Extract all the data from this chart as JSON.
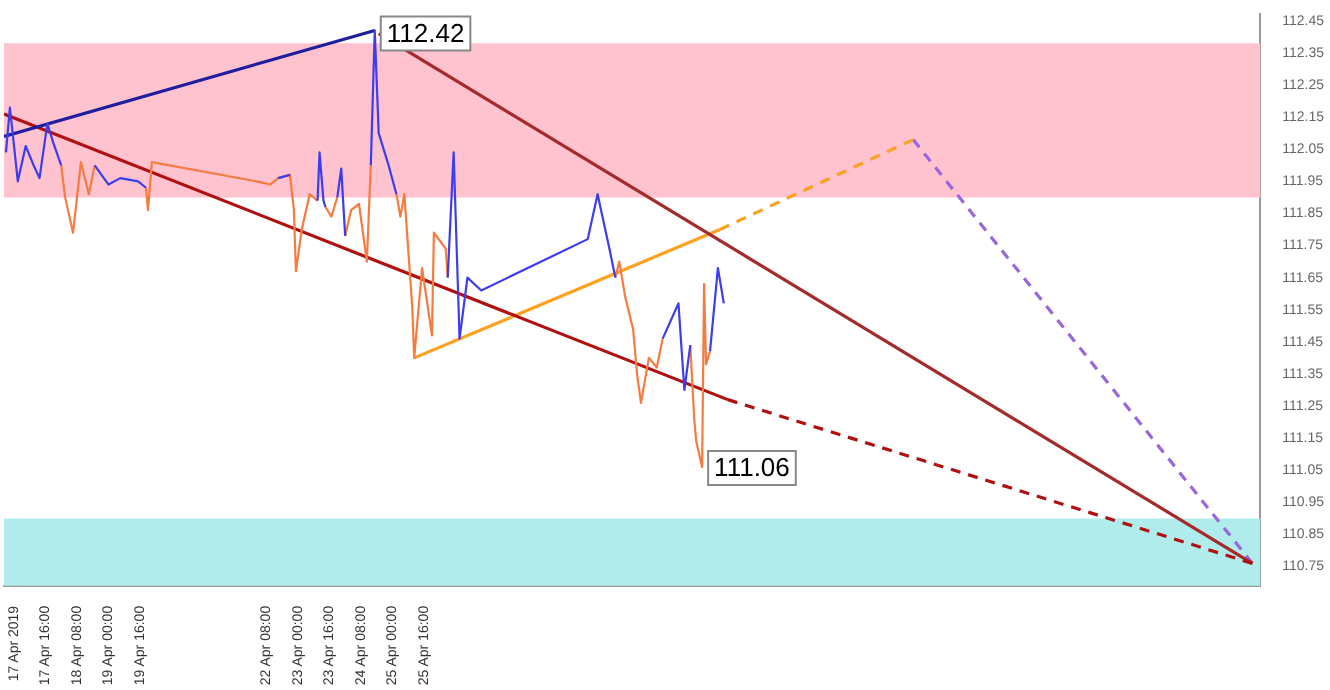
{
  "chart_data": {
    "type": "line",
    "marker": "none",
    "legend": false,
    "grid": false,
    "x": [
      "2019-04-16T20:00",
      "2019-04-16T22:00",
      "2019-04-17T02:00",
      "2019-04-17T06:00",
      "2019-04-17T10:00",
      "2019-04-17T13:00",
      "2019-04-17T17:00",
      "2019-04-17T20:00",
      "2019-04-18T00:00",
      "2019-04-18T02:00",
      "2019-04-18T06:00",
      "2019-04-18T10:00",
      "2019-04-18T14:00",
      "2019-04-18T17:00",
      "2019-04-19T00:00",
      "2019-04-19T06:00",
      "2019-04-19T15:00",
      "2019-04-19T19:00",
      "2019-04-19T20:00",
      "2019-04-19T22:00",
      "2019-04-22T03:00",
      "2019-04-22T10:00",
      "2019-04-22T14:00",
      "2019-04-22T20:00",
      "2019-04-22T22:00",
      "2019-04-22T23:00",
      "2019-04-23T02:00",
      "2019-04-23T06:00",
      "2019-04-23T10:00",
      "2019-04-23T11:00",
      "2019-04-23T13:00",
      "2019-04-23T14:00",
      "2019-04-23T17:00",
      "2019-04-23T20:00",
      "2019-04-23T22:00",
      "2019-04-24T00:00",
      "2019-04-24T03:00",
      "2019-04-24T07:00",
      "2019-04-24T11:00",
      "2019-04-24T13:00",
      "2019-04-24T15:00",
      "2019-04-24T17:00",
      "2019-04-24T22:00",
      "2019-04-25T02:00",
      "2019-04-25T04:00",
      "2019-04-25T06:00",
      "2019-04-25T10:00",
      "2019-04-25T11:00",
      "2019-04-25T15:00",
      "2019-04-25T20:00",
      "2019-04-25T21:00",
      "2019-04-26T03:00",
      "2019-04-26T04:00",
      "2019-04-26T07:00",
      "2019-04-26T10:00",
      "2019-04-26T14:00",
      "2019-04-26T21:00",
      "2019-04-29T03:00",
      "2019-04-29T08:00",
      "2019-04-29T14:00",
      "2019-04-29T17:00",
      "2019-04-29T19:00",
      "2019-04-29T22:00",
      "2019-04-30T02:00",
      "2019-04-30T04:00",
      "2019-04-30T06:00",
      "2019-04-30T10:00",
      "2019-04-30T14:00",
      "2019-04-30T17:00",
      "2019-05-01T01:00",
      "2019-05-01T04:00",
      "2019-05-01T07:00",
      "2019-05-01T09:00",
      "2019-05-01T10:00",
      "2019-05-01T13:00",
      "2019-05-01T14:00",
      "2019-05-01T15:00",
      "2019-05-01T17:00",
      "2019-05-01T21:00",
      "2019-05-02T00:00"
    ],
    "xlim": [
      "2019-04-16T19:00",
      "2019-05-13T08:00"
    ],
    "xticks": [
      {
        "value": "2019-04-17",
        "label": "17 Apr 2019"
      },
      {
        "value": "2019-04-17T16:00",
        "label": "17 Apr 16:00"
      },
      {
        "value": "2019-04-18T08:00",
        "label": "18 Apr 08:00"
      },
      {
        "value": "2019-04-19T00:00",
        "label": "19 Apr 00:00"
      },
      {
        "value": "2019-04-19T16:00",
        "label": "19 Apr 16:00"
      },
      {
        "value": "2019-04-22T08:00",
        "label": "22 Apr 08:00"
      },
      {
        "value": "2019-04-23T00:00",
        "label": "23 Apr 00:00"
      },
      {
        "value": "2019-04-23T16:00",
        "label": "23 Apr 16:00"
      },
      {
        "value": "2019-04-24T08:00",
        "label": "24 Apr 08:00"
      },
      {
        "value": "2019-04-25T00:00",
        "label": "25 Apr 00:00"
      },
      {
        "value": "2019-04-25T16:00",
        "label": "25 Apr 16:00"
      }
    ],
    "ylim": [
      110.69,
      112.47
    ],
    "yticks": [
      110.75,
      110.85,
      110.95,
      111.05,
      111.15,
      111.25,
      111.35,
      111.45,
      111.55,
      111.65,
      111.75,
      111.85,
      111.95,
      112.05,
      112.15,
      112.25,
      112.35,
      112.45
    ],
    "bands": [
      {
        "axis": "y",
        "from": 111.9,
        "to": 112.38,
        "color": "#ffc2cf"
      },
      {
        "axis": "y",
        "from": 110.69,
        "to": 110.9,
        "color": "#b0ecec"
      }
    ],
    "series": [
      {
        "color": "#3c3cf0",
        "values": [
          112.04,
          112.18,
          111.95,
          112.06,
          112.0,
          111.96,
          112.13,
          112.07,
          112.0,
          null,
          null,
          null,
          null,
          112.0,
          111.94,
          111.96,
          111.95,
          111.93,
          null,
          null,
          null,
          null,
          111.96,
          111.97,
          null,
          null,
          null,
          null,
          111.89,
          112.04,
          111.89,
          111.87,
          null,
          111.9,
          111.99,
          111.78,
          null,
          null,
          null,
          112.0,
          112.42,
          112.1,
          112.0,
          111.91,
          null,
          null,
          null,
          null,
          null,
          null,
          null,
          null,
          111.65,
          112.04,
          111.46,
          111.65,
          111.61,
          111.77,
          111.91,
          111.74,
          111.65,
          null,
          null,
          null,
          null,
          null,
          null,
          null,
          111.46,
          111.57,
          111.3,
          111.44,
          null,
          null,
          null,
          null,
          null,
          111.42,
          111.68,
          111.57
        ]
      },
      {
        "color": "#f77a3e",
        "values": [
          null,
          null,
          null,
          null,
          null,
          null,
          null,
          null,
          112.0,
          111.9,
          111.79,
          112.01,
          111.91,
          112.0,
          null,
          null,
          null,
          111.93,
          111.86,
          112.01,
          111.95,
          111.94,
          111.96,
          111.97,
          111.86,
          111.67,
          111.8,
          111.91,
          111.89,
          null,
          null,
          111.87,
          111.84,
          111.9,
          null,
          111.78,
          111.86,
          111.88,
          111.7,
          112.0,
          null,
          null,
          null,
          111.91,
          111.84,
          111.91,
          111.56,
          111.4,
          111.68,
          111.47,
          111.79,
          111.74,
          111.65,
          null,
          null,
          null,
          null,
          null,
          null,
          null,
          111.65,
          111.7,
          111.59,
          111.49,
          111.35,
          111.26,
          111.4,
          111.37,
          111.46,
          null,
          null,
          111.44,
          111.21,
          111.14,
          111.06,
          111.63,
          111.38,
          111.42,
          null,
          null
        ]
      },
      {
        "type": "line",
        "color": "#1f1f9e",
        "line_style": "solid",
        "x": [
          "2019-04-16T19:00",
          "2019-04-24T15:00"
        ],
        "values": [
          112.09,
          112.42
        ]
      },
      {
        "type": "line",
        "color": "#b01010",
        "line_style": "solid",
        "x": [
          "2019-04-16T19:00",
          "2019-05-02T02:00"
        ],
        "values": [
          112.16,
          111.27
        ]
      },
      {
        "type": "line",
        "color": "#b01010",
        "line_style": "dashed",
        "x": [
          "2019-05-02T02:00",
          "2019-05-13T04:00"
        ],
        "values": [
          111.27,
          110.76
        ]
      },
      {
        "type": "line",
        "color": "#a52a2a",
        "line_style": "solid",
        "x": [
          "2019-04-24T17:00",
          "2019-05-13T04:00"
        ],
        "values": [
          112.41,
          110.76
        ]
      },
      {
        "type": "line",
        "color": "#ffa020",
        "line_style": "solid",
        "x": [
          "2019-04-25T11:00",
          "2019-05-01T22:00"
        ],
        "values": [
          111.4,
          111.8
        ]
      },
      {
        "type": "line",
        "color": "#ffa020",
        "line_style": "dashed",
        "x": [
          "2019-05-01T22:00",
          "2019-05-06T00:00"
        ],
        "values": [
          111.8,
          112.08
        ]
      },
      {
        "type": "line",
        "color": "#9966dd",
        "line_style": "dashed",
        "x": [
          "2019-05-06T00:00",
          "2019-05-13T04:00"
        ],
        "values": [
          112.08,
          110.76
        ]
      }
    ],
    "annotations": [
      {
        "text": "112.42",
        "x": "2019-04-24T15:00",
        "y": 112.42
      },
      {
        "text": "111.06",
        "x": "2019-05-01T13:00",
        "y": 111.06
      }
    ]
  }
}
